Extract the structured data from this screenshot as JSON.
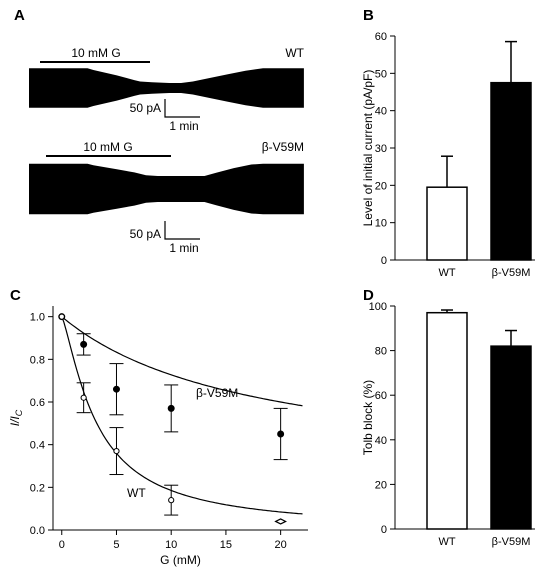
{
  "panels": {
    "A": {
      "letter": "A",
      "traces": [
        {
          "label": "WT",
          "bar_label": "10 mM G",
          "scale_current": "50 pA",
          "scale_time": "1 min",
          "envelope": [
            [
              0,
              0.55
            ],
            [
              0.5,
              0.55
            ],
            [
              0.55,
              0.5
            ],
            [
              0.75,
              0.35
            ],
            [
              0.9,
              0.22
            ],
            [
              0.95,
              0.18
            ],
            [
              1.05,
              0.16
            ],
            [
              1.2,
              0.14
            ],
            [
              1.3,
              0.14
            ],
            [
              1.4,
              0.18
            ],
            [
              1.55,
              0.28
            ],
            [
              1.7,
              0.38
            ],
            [
              1.85,
              0.48
            ],
            [
              2.0,
              0.55
            ],
            [
              2.35,
              0.55
            ]
          ]
        },
        {
          "label": "β-V59M",
          "bar_label": "10 mM G",
          "scale_current": "50 pA",
          "scale_time": "1 min",
          "envelope": [
            [
              0,
              0.7
            ],
            [
              0.5,
              0.7
            ],
            [
              0.55,
              0.66
            ],
            [
              0.75,
              0.55
            ],
            [
              0.9,
              0.46
            ],
            [
              1.0,
              0.38
            ],
            [
              1.1,
              0.36
            ],
            [
              1.3,
              0.36
            ],
            [
              1.5,
              0.36
            ],
            [
              1.6,
              0.45
            ],
            [
              1.75,
              0.58
            ],
            [
              1.9,
              0.68
            ],
            [
              2.0,
              0.7
            ],
            [
              2.35,
              0.7
            ]
          ]
        }
      ]
    },
    "B": {
      "letter": "B"
    },
    "C": {
      "letter": "C"
    },
    "D": {
      "letter": "D"
    }
  },
  "chart_data": [
    {
      "panel": "B",
      "type": "bar",
      "categories": [
        "WT",
        "β-V59M"
      ],
      "values": [
        19.5,
        47.5
      ],
      "errors": [
        8.3,
        11
      ],
      "fills": [
        "#ffffff",
        "#000000"
      ],
      "ylabel": "Level of initial current (pA/pF)",
      "ylim": [
        0,
        60
      ],
      "yticks": [
        "0",
        "10",
        "20",
        "30",
        "40",
        "50",
        "60"
      ]
    },
    {
      "panel": "C",
      "type": "scatter",
      "xlabel": "G (mM)",
      "ylabel_main": "I/I",
      "ylabel_sub": "C",
      "xlim": [
        -0.8,
        22.5
      ],
      "ylim": [
        0,
        1.05
      ],
      "xticks": [
        "0",
        "5",
        "10",
        "15",
        "20"
      ],
      "yticks": [
        "0.0",
        "0.2",
        "0.4",
        "0.6",
        "0.8",
        "1.0"
      ],
      "series": [
        {
          "name": "β-V59M",
          "marker": "filled",
          "x": [
            0,
            2,
            5,
            10,
            20
          ],
          "y": [
            1.0,
            0.87,
            0.66,
            0.57,
            0.45
          ],
          "err": [
            0,
            0.05,
            0.12,
            0.11,
            0.12
          ],
          "fit_ic50": 17.5,
          "fit_h": 1.0,
          "fit_floor": 0.25
        },
        {
          "name": "WT",
          "marker": "open",
          "x": [
            0,
            2,
            5,
            10,
            20
          ],
          "y": [
            1.0,
            0.62,
            0.37,
            0.14,
            0.04
          ],
          "err": [
            0,
            0.07,
            0.11,
            0.07,
            0
          ],
          "fit_ic50": 3.2,
          "fit_h": 1.3,
          "fit_floor": 0
        }
      ]
    },
    {
      "panel": "D",
      "type": "bar",
      "categories": [
        "WT",
        "β-V59M"
      ],
      "values": [
        97,
        82
      ],
      "errors": [
        1.2,
        7
      ],
      "fills": [
        "#ffffff",
        "#000000"
      ],
      "ylabel": "Tolb block (%)",
      "ylim": [
        0,
        100
      ],
      "yticks": [
        "0",
        "20",
        "40",
        "60",
        "80",
        "100"
      ]
    }
  ]
}
